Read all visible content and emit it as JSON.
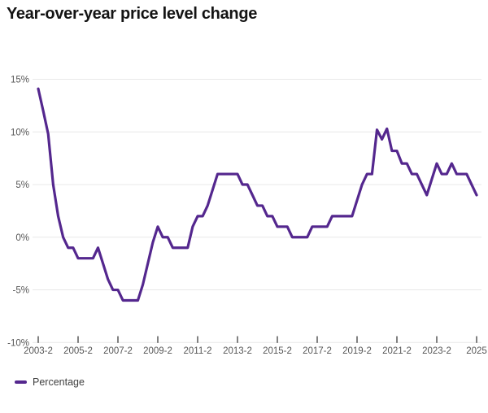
{
  "chart_data": {
    "type": "line",
    "title": "Year-over-year price level change",
    "grid": true,
    "legend_position": "bottom-left",
    "colors": {
      "line": "#54278e",
      "gridline": "#e8e8e8",
      "axis_text": "#565656",
      "tick_mark": "#2e2e2e"
    },
    "ylim": [
      -10,
      15
    ],
    "y_unit": "%",
    "y_tick_values": [
      15,
      10,
      5,
      0,
      -5,
      -10
    ],
    "y_tick_labels": [
      "15%",
      "10%",
      "5%",
      "0%",
      "-5%",
      "-10%"
    ],
    "x_tick_every": 8,
    "x_tick_labels": [
      "2003-2",
      "2005-2",
      "2007-2",
      "2009-2",
      "2011-2",
      "2013-2",
      "2015-2",
      "2017-2",
      "2019-2",
      "2021-2",
      "2023-2",
      "2025"
    ],
    "series": [
      {
        "name": "Percentage",
        "start_period": "2003-2",
        "values": [
          14.1,
          12,
          9.8,
          5,
          2,
          0,
          -1,
          -1,
          -2,
          -2,
          -2,
          -2,
          -1,
          -2.5,
          -4,
          -5,
          -5,
          -6,
          -6,
          -6,
          -6,
          -4.5,
          -2.5,
          -0.5,
          1,
          0,
          0,
          -1,
          -1,
          -1,
          -1,
          1,
          2,
          2,
          3,
          4.5,
          6,
          6,
          6,
          6,
          6,
          5,
          5,
          4,
          3,
          3,
          2,
          2,
          1,
          1,
          1,
          0,
          0,
          0,
          0,
          1,
          1,
          1,
          1,
          2,
          2,
          2,
          2,
          2,
          3.5,
          5,
          6,
          6,
          10.2,
          9.3,
          10.3,
          8.2,
          8.2,
          7,
          7,
          6,
          6,
          5,
          4,
          5.5,
          7,
          6,
          6,
          7,
          6,
          6,
          6,
          5,
          4
        ]
      }
    ]
  },
  "legend": {
    "label": "Percentage"
  }
}
